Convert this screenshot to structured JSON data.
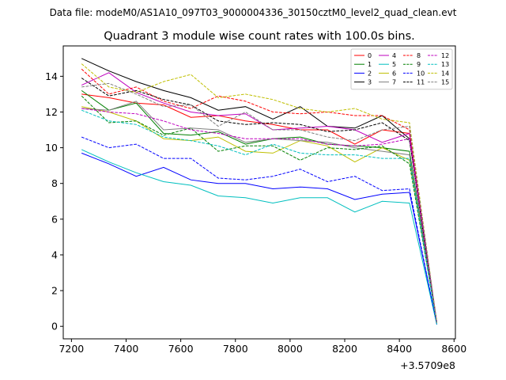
{
  "suptitle": "Data file: modeM0/AS1A10_097T03_9000004336_30150cztM0_level2_quad_clean.evt",
  "chart_data": {
    "type": "line",
    "title": "Quadrant 3 module wise count rates with 100.0s bins.",
    "xlabel": "",
    "ylabel": "",
    "x_offset_label": "+3.5709e8",
    "x": [
      7237,
      7337,
      7437,
      7537,
      7637,
      7737,
      7837,
      7937,
      8037,
      8137,
      8237,
      8337,
      8437,
      8537
    ],
    "xlim": [
      7170,
      8605
    ],
    "ylim": [
      -0.7,
      15.7
    ],
    "xticks": [
      7200,
      7400,
      7600,
      7800,
      8000,
      8200,
      8400,
      8600
    ],
    "xtick_labels": [
      "7200",
      "7400",
      "7600",
      "7800",
      "8000",
      "8200",
      "8400",
      "8600"
    ],
    "yticks": [
      0,
      2,
      4,
      6,
      8,
      10,
      12,
      14
    ],
    "ytick_labels": [
      "0",
      "2",
      "4",
      "6",
      "8",
      "10",
      "12",
      "14"
    ],
    "grid": false,
    "legend_position": "top-right",
    "series": [
      {
        "name": "0",
        "color": "#ff0000",
        "dash": "solid",
        "values": [
          13.0,
          12.8,
          12.5,
          12.4,
          11.7,
          11.8,
          11.5,
          11.3,
          11.0,
          11.0,
          10.2,
          11.0,
          10.8,
          0.2
        ]
      },
      {
        "name": "1",
        "color": "#008000",
        "dash": "solid",
        "values": [
          13.2,
          12.1,
          12.5,
          10.8,
          10.7,
          10.9,
          10.2,
          10.5,
          10.6,
          10.2,
          10.1,
          10.0,
          9.8,
          0.2
        ]
      },
      {
        "name": "2",
        "color": "#0000ff",
        "dash": "solid",
        "values": [
          9.7,
          9.1,
          8.4,
          8.9,
          8.2,
          8.0,
          8.0,
          7.7,
          7.8,
          7.7,
          7.1,
          7.4,
          7.5,
          0.1
        ]
      },
      {
        "name": "3",
        "color": "#000000",
        "dash": "solid",
        "values": [
          15.0,
          14.3,
          13.7,
          13.2,
          12.8,
          12.1,
          12.3,
          11.6,
          12.3,
          11.2,
          11.1,
          11.8,
          10.5,
          0.2
        ]
      },
      {
        "name": "4",
        "color": "#bf00bf",
        "dash": "solid",
        "values": [
          13.5,
          14.2,
          13.1,
          12.5,
          12.0,
          11.8,
          11.9,
          11.0,
          11.1,
          11.2,
          11.0,
          10.3,
          10.8,
          0.2
        ]
      },
      {
        "name": "5",
        "color": "#00bfbf",
        "dash": "solid",
        "values": [
          9.9,
          9.2,
          8.6,
          8.1,
          7.9,
          7.3,
          7.2,
          6.9,
          7.2,
          7.2,
          6.4,
          7.0,
          6.9,
          0.1
        ]
      },
      {
        "name": "6",
        "color": "#bfbf00",
        "dash": "solid",
        "values": [
          12.3,
          12.0,
          11.5,
          10.5,
          10.4,
          10.6,
          9.8,
          9.7,
          10.4,
          10.1,
          9.2,
          10.0,
          9.3,
          0.2
        ]
      },
      {
        "name": "7",
        "color": "#808080",
        "dash": "solid",
        "values": [
          12.2,
          12.1,
          12.6,
          11.0,
          11.1,
          11.0,
          10.3,
          10.5,
          10.4,
          10.3,
          10.0,
          9.8,
          9.6,
          0.2
        ]
      },
      {
        "name": "8",
        "color": "#ff0000",
        "dash": "dashed",
        "values": [
          14.4,
          13.0,
          13.4,
          12.6,
          12.2,
          12.9,
          12.6,
          12.0,
          11.9,
          12.0,
          11.8,
          11.8,
          11.0,
          0.2
        ]
      },
      {
        "name": "9",
        "color": "#008000",
        "dash": "dashed",
        "values": [
          12.9,
          11.4,
          11.5,
          10.7,
          11.1,
          9.8,
          10.1,
          10.1,
          9.3,
          10.0,
          9.9,
          10.1,
          9.1,
          0.2
        ]
      },
      {
        "name": "10",
        "color": "#0000ff",
        "dash": "dashed",
        "values": [
          10.6,
          10.0,
          10.2,
          9.4,
          9.4,
          8.3,
          8.2,
          8.4,
          8.8,
          8.1,
          8.4,
          7.6,
          7.7,
          0.1
        ]
      },
      {
        "name": "11",
        "color": "#000000",
        "dash": "dashed",
        "values": [
          13.9,
          12.9,
          13.2,
          12.7,
          12.4,
          11.5,
          11.3,
          11.4,
          11.3,
          10.9,
          11.0,
          11.4,
          10.4,
          0.2
        ]
      },
      {
        "name": "12",
        "color": "#bf00bf",
        "dash": "dashed",
        "values": [
          12.2,
          12.0,
          11.9,
          11.5,
          11.0,
          10.8,
          10.5,
          10.5,
          10.5,
          10.2,
          10.1,
          10.2,
          10.5,
          0.2
        ]
      },
      {
        "name": "13",
        "color": "#00bfbf",
        "dash": "dashed",
        "values": [
          12.1,
          11.5,
          11.3,
          10.6,
          10.4,
          10.1,
          9.6,
          10.2,
          9.7,
          9.6,
          9.6,
          9.4,
          9.4,
          0.1
        ]
      },
      {
        "name": "14",
        "color": "#bfbf00",
        "dash": "dashed",
        "values": [
          14.7,
          13.4,
          13.1,
          13.7,
          14.1,
          12.8,
          13.0,
          12.7,
          12.2,
          12.0,
          12.2,
          11.6,
          11.4,
          0.2
        ]
      },
      {
        "name": "15",
        "color": "#808080",
        "dash": "dashed",
        "values": [
          13.4,
          13.6,
          13.0,
          12.3,
          12.4,
          11.2,
          12.0,
          11.0,
          11.0,
          10.6,
          10.4,
          11.0,
          11.2,
          0.2
        ]
      }
    ]
  }
}
